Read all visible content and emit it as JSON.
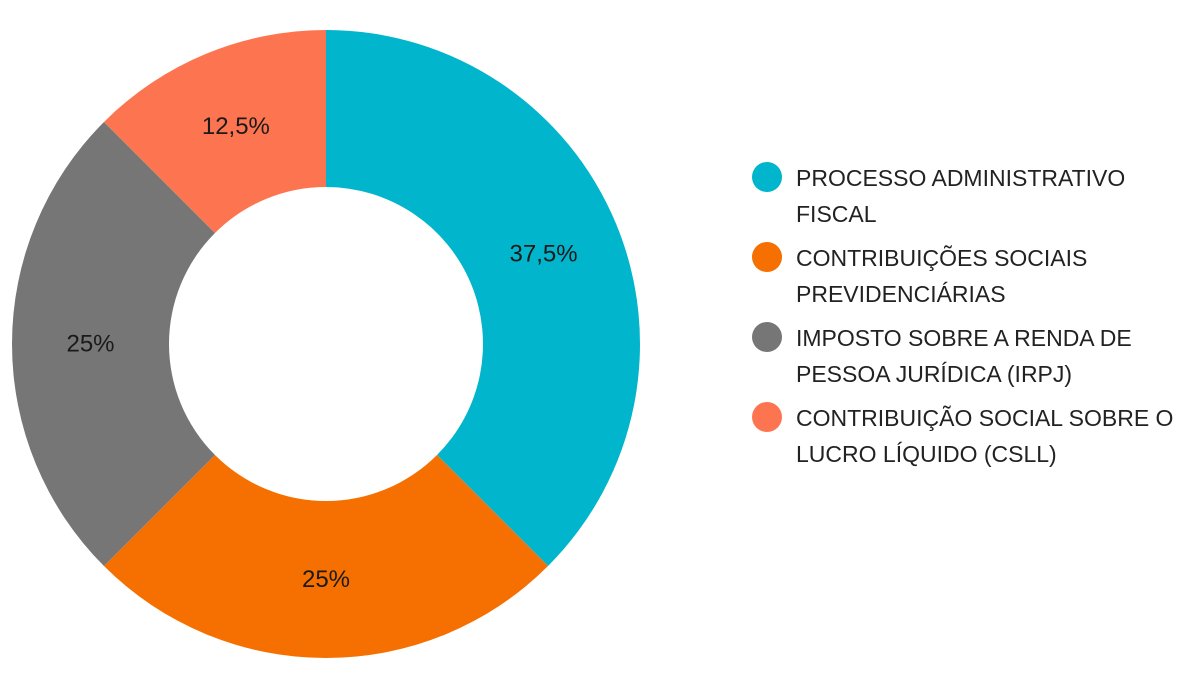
{
  "chart_data": {
    "type": "pie",
    "donut": true,
    "legend_position": "right",
    "slices": [
      {
        "name": "PROCESSO ADMINISTRATIVO FISCAL",
        "value": 37.5,
        "label": "37,5%",
        "color": "#00B5CC"
      },
      {
        "name": "CONTRIBUIÇÕES SOCIAIS PREVIDENCIÁRIAS",
        "value": 25,
        "label": "25%",
        "color": "#F57000"
      },
      {
        "name": "IMPOSTO SOBRE A RENDA DE PESSOA JURÍDICA (IRPJ)",
        "value": 25,
        "label": "25%",
        "color": "#767676"
      },
      {
        "name": "CONTRIBUIÇÃO SOCIAL SOBRE O LUCRO LÍQUIDO (CSLL)",
        "value": 12.5,
        "label": "12,5%",
        "color": "#FD7550"
      }
    ]
  }
}
